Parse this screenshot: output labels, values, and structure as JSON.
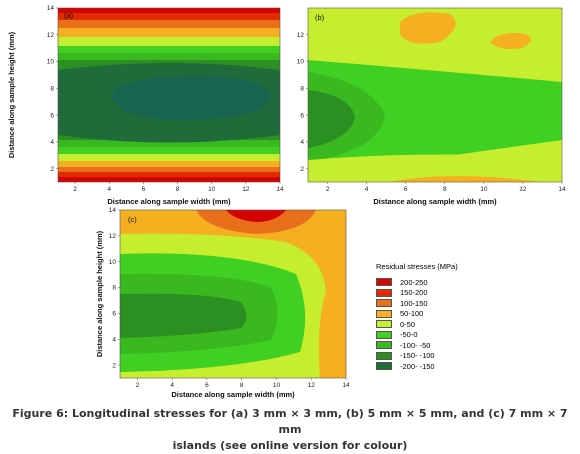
{
  "colors": {
    "c200_250": "#d40000",
    "c150_200": "#e02a00",
    "c100_150": "#e8701a",
    "c50_100": "#f4b021",
    "c0_50": "#c7ee2e",
    "cm50_0": "#3fd023",
    "cm100_m50": "#39b81f",
    "cm150_m100": "#2c8f22",
    "cm200_m150": "#1f6b3a",
    "deep": "#186450"
  },
  "legend": {
    "title": "Residual stresses (MPa)",
    "items": [
      {
        "label": "200-250",
        "color": "#d40000"
      },
      {
        "label": "150-200",
        "color": "#e02a00"
      },
      {
        "label": "100-150",
        "color": "#e8701a"
      },
      {
        "label": "50-100",
        "color": "#f4b021"
      },
      {
        "label": "0-50",
        "color": "#c7ee2e"
      },
      {
        "label": "-50-0",
        "color": "#3fd023"
      },
      {
        "label": "-100- -50",
        "color": "#39b81f"
      },
      {
        "label": "-150- -100",
        "color": "#2c8f22"
      },
      {
        "label": "-200- -150",
        "color": "#1f6b3a"
      }
    ]
  },
  "caption": {
    "line1": "Figure 6: Longitudinal stresses for (a) 3 mm × 3 mm, (b) 5 mm × 5 mm, and (c) 7 mm × 7 mm",
    "line2": "islands (see online version for colour)"
  },
  "chart_data": [
    {
      "type": "heatmap",
      "panel_label": "(a)",
      "xlabel": "Distance along sample width (mm)",
      "ylabel": "Distance along sample height (mm)",
      "xlim": [
        1,
        14
      ],
      "ylim": [
        1,
        14
      ],
      "x_ticks": [
        "2",
        "4",
        "6",
        "8",
        "10",
        "12",
        "14"
      ],
      "y_ticks": [
        "2",
        "4",
        "6",
        "8",
        "10",
        "12",
        "14"
      ],
      "grid": false,
      "description_bands_mpa": "-200- -150 core near centre rising to 200-250 at top and bottom edges"
    },
    {
      "type": "heatmap",
      "panel_label": "(b)",
      "xlabel": "Distance along sample width (mm)",
      "ylabel": "Distance along sample height (mm)",
      "xlim": [
        1,
        14
      ],
      "ylim": [
        1,
        14
      ],
      "x_ticks": [
        "2",
        "4",
        "6",
        "8",
        "10",
        "12",
        "14"
      ],
      "y_ticks": [
        "2",
        "4",
        "6",
        "8",
        "10",
        "12"
      ],
      "grid": false
    },
    {
      "type": "heatmap",
      "panel_label": "(c)",
      "xlabel": "Distance along sample width (mm)",
      "ylabel": "Distance along sample height (mm)",
      "xlim": [
        1,
        14
      ],
      "ylim": [
        1,
        14
      ],
      "x_ticks": [
        "2",
        "4",
        "6",
        "8",
        "10",
        "12",
        "14"
      ],
      "y_ticks": [
        "2",
        "4",
        "6",
        "8",
        "10",
        "12",
        "14"
      ],
      "grid": false
    }
  ]
}
